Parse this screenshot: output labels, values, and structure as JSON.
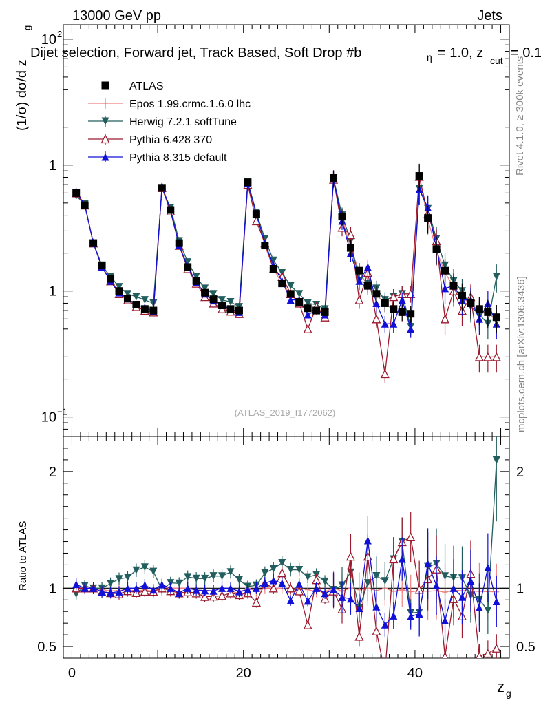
{
  "header": {
    "energy": "13000 GeV pp",
    "process": "Jets",
    "selection_title": "Dijet selection, Forward jet, Track Based, Soft Drop #b",
    "beta_label": "= 1.0, z",
    "cut_sub": "cut",
    "cut_value": "= 0.1",
    "g_sub": "g"
  },
  "side": {
    "rivet": "Rivet 4.1.0, ≥ 300k events",
    "mcplots": "mcplots.cern.ch [arXiv:1306.3436]"
  },
  "analysis_id": "(ATLAS_2019_I1772062)",
  "axes": {
    "main_ylabel": "(1/σ) dσ/d z",
    "ratio_ylabel": "Ratio to ATLAS",
    "xlabel": "z",
    "xlabel_sub": "g",
    "x_ticks": [
      "0",
      "20",
      "40"
    ],
    "main_y_ticks": [
      "10",
      "1",
      "10"
    ],
    "main_y_sup": [
      "2",
      "",
      "−1"
    ],
    "ratio_y_ticks": [
      "2",
      "1",
      "0.5"
    ]
  },
  "legend": [
    {
      "label": "ATLAS",
      "color": "#000000",
      "marker": "square"
    },
    {
      "label": "Epos 1.99.crmc.1.6.0 lhc",
      "color": "#f08080",
      "marker": "cross"
    },
    {
      "label": "Herwig 7.2.1 softTune",
      "color": "#225e5e",
      "marker": "triangle-down"
    },
    {
      "label": "Pythia 6.428 370",
      "color": "#9b1a2e",
      "marker": "triangle-open"
    },
    {
      "label": "Pythia 8.315 default",
      "color": "#1010d8",
      "marker": "triangle-up"
    }
  ],
  "chart_data": {
    "type": "scatter",
    "title": "Dijet selection, Forward jet, Track Based, Soft Drop beta = 1.0, z_cut = 0.1",
    "xlabel": "z_g",
    "ylabel": "(1/sigma) dsigma/d z_g",
    "xlim": [
      -1,
      51
    ],
    "ylim": [
      0.07,
      130
    ],
    "yscale": "log",
    "ratio_ylim": [
      0.4,
      2.3
    ],
    "x": [
      0.5,
      1.5,
      2.5,
      3.5,
      4.5,
      5.5,
      6.5,
      7.5,
      8.5,
      9.5,
      10.5,
      11.5,
      12.5,
      13.5,
      14.5,
      15.5,
      16.5,
      17.5,
      18.5,
      19.5,
      20.5,
      21.5,
      22.5,
      23.5,
      24.5,
      25.5,
      26.5,
      27.5,
      28.5,
      29.5,
      30.5,
      31.5,
      32.5,
      33.5,
      34.5,
      35.5,
      36.5,
      37.5,
      38.5,
      39.5,
      40.5,
      41.5,
      42.5,
      43.5,
      44.5,
      45.5,
      46.5,
      47.5,
      48.5,
      49.5
    ],
    "series": [
      {
        "name": "ATLAS",
        "values": [
          6.0,
          4.8,
          2.4,
          1.6,
          1.25,
          1.0,
          0.87,
          0.78,
          0.72,
          0.7,
          6.6,
          4.4,
          2.4,
          1.55,
          1.2,
          0.97,
          0.86,
          0.77,
          0.72,
          0.7,
          7.3,
          4.1,
          2.3,
          1.5,
          1.15,
          0.95,
          0.82,
          0.73,
          0.7,
          0.68,
          7.9,
          3.9,
          2.2,
          1.45,
          1.1,
          0.95,
          0.8,
          0.72,
          0.68,
          0.66,
          8.2,
          3.8,
          2.15,
          1.45,
          1.1,
          0.92,
          0.8,
          0.72,
          0.68,
          0.62
        ]
      },
      {
        "name": "Epos 1.99.crmc.1.6.0 lhc",
        "values": [
          6.1,
          4.8,
          2.4,
          1.58,
          1.22,
          0.98,
          0.86,
          0.76,
          0.71,
          0.68,
          6.7,
          4.4,
          2.4,
          1.55,
          1.18,
          0.95,
          0.84,
          0.75,
          0.7,
          0.67,
          7.3,
          4.0,
          2.3,
          1.5,
          1.15,
          0.94,
          0.82,
          0.72,
          0.68,
          0.66,
          7.9,
          3.8,
          2.2,
          1.43,
          1.1,
          0.93,
          0.8,
          0.7,
          0.67,
          0.64,
          8.0,
          3.7,
          2.1,
          1.4,
          1.08,
          0.9,
          0.78,
          0.7,
          0.66,
          0.6
        ]
      },
      {
        "name": "Herwig 7.2.1 softTune",
        "values": [
          5.7,
          4.9,
          2.4,
          1.6,
          1.3,
          1.08,
          0.95,
          0.9,
          0.85,
          0.8,
          6.5,
          4.6,
          2.5,
          1.7,
          1.3,
          1.05,
          0.95,
          0.85,
          0.82,
          0.75,
          7.4,
          4.2,
          2.6,
          1.75,
          1.4,
          1.1,
          0.95,
          0.8,
          0.78,
          0.72,
          7.8,
          4.0,
          2.5,
          1.2,
          1.15,
          1.05,
          0.85,
          0.9,
          0.95,
          0.52,
          6.5,
          4.5,
          2.6,
          1.6,
          1.2,
          1.0,
          0.75,
          0.65,
          0.55,
          1.3
        ]
      },
      {
        "name": "Pythia 6.428 370",
        "values": [
          6.0,
          4.8,
          2.4,
          1.55,
          1.2,
          0.95,
          0.85,
          0.75,
          0.7,
          0.68,
          6.6,
          4.3,
          2.3,
          1.5,
          1.15,
          0.9,
          0.8,
          0.72,
          0.69,
          0.66,
          7.0,
          3.6,
          2.4,
          1.5,
          1.3,
          0.95,
          0.8,
          0.5,
          0.75,
          0.62,
          7.7,
          3.2,
          2.8,
          0.85,
          1.4,
          0.6,
          0.22,
          0.9,
          0.95,
          0.95,
          8.1,
          4.1,
          2.5,
          0.6,
          1.0,
          0.7,
          0.9,
          0.3,
          0.3,
          0.3
        ]
      },
      {
        "name": "Pythia 8.315 default",
        "values": [
          6.2,
          4.8,
          2.4,
          1.55,
          1.2,
          0.97,
          0.87,
          0.78,
          0.74,
          0.69,
          6.8,
          4.4,
          2.3,
          1.55,
          1.18,
          0.95,
          0.84,
          0.77,
          0.72,
          0.68,
          7.2,
          4.1,
          2.4,
          1.6,
          1.2,
          0.85,
          0.85,
          0.65,
          0.7,
          0.65,
          7.8,
          3.6,
          2.0,
          1.2,
          1.55,
          0.8,
          0.55,
          0.55,
          0.85,
          0.5,
          6.4,
          4.6,
          2.2,
          1.05,
          1.1,
          0.85,
          0.85,
          0.6,
          0.8,
          0.55
        ]
      }
    ]
  }
}
